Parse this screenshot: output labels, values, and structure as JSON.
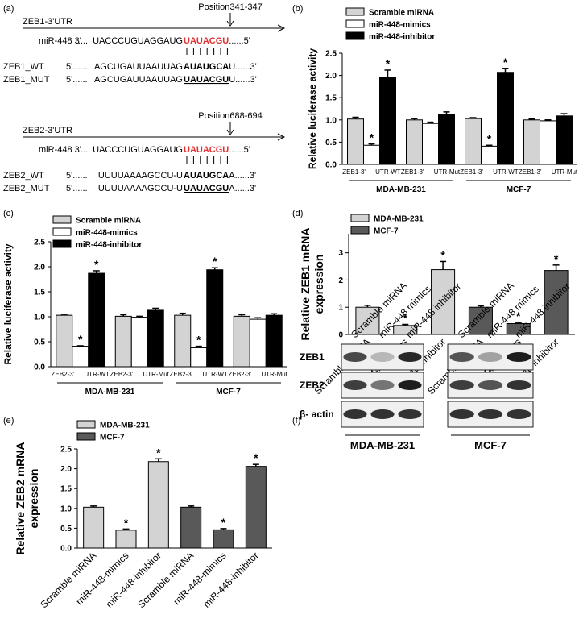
{
  "panel_a": {
    "label": "(a)",
    "blocks": [
      {
        "utr": "ZEB1-3'UTR",
        "position": "Position341-347",
        "mirna": "miR-448 3'",
        "mirna_prefix": "...... UACCCUGUAGGAUG",
        "mirna_seed": "UAUACGU",
        "mirna_end": "......5'",
        "targets": [
          {
            "name": "ZEB1_WT",
            "start": "5'......",
            "prefix": "AGCUGAUUAAUUAG",
            "site": "AUAUGCA",
            "end": "U......3'"
          },
          {
            "name": "ZEB1_MUT",
            "start": "5'......",
            "prefix": "AGCUGAUUAAUUAG",
            "site": "UAUACGU",
            "end": "U......3'"
          }
        ]
      },
      {
        "utr": "ZEB2-3'UTR",
        "position": "Position688-694",
        "mirna": "miR-448 3'",
        "mirna_prefix": "...... UACCCUGUAGGAUG",
        "mirna_seed": "UAUACGU",
        "mirna_end": "......5'",
        "targets": [
          {
            "name": "ZEB2_WT",
            "start": "5'......",
            "prefix": "UUUUAAAAGCCU-U",
            "site": "AUAUGCA",
            "end": "A......3'"
          },
          {
            "name": "ZEB2_MUT",
            "start": "5'......",
            "prefix": "UUUUAAAAGCCU-U",
            "site": "UAUACGU",
            "end": "A......3'"
          }
        ]
      }
    ]
  },
  "chart_data": [
    {
      "type": "bar",
      "panel": "(b)",
      "ylabel": "Relative luciferase activity",
      "categories": [
        "ZEB1-3' UTR-WT",
        "ZEB1-3' UTR-Mut",
        "ZEB1-3' UTR-WT",
        "ZEB1-3' UTR-Mut"
      ],
      "group_labels": [
        "MDA-MB-231",
        "MCF-7"
      ],
      "series": [
        {
          "name": "Scramble miRNA",
          "color": "#d3d3d3",
          "values": [
            1.02,
            1.0,
            1.03,
            1.0
          ],
          "errors": [
            0.04,
            0.03,
            0.02,
            0.02
          ],
          "significance": [
            null,
            null,
            null,
            null
          ]
        },
        {
          "name": "miR-448-mimics",
          "color": "#ffffff",
          "values": [
            0.43,
            0.92,
            0.41,
            0.98
          ],
          "errors": [
            0.03,
            0.03,
            0.02,
            0.02
          ],
          "significance": [
            "*",
            null,
            "*",
            null
          ]
        },
        {
          "name": "miR-448-inhibitor",
          "color": "#000000",
          "values": [
            1.95,
            1.13,
            2.07,
            1.09
          ],
          "errors": [
            0.17,
            0.05,
            0.09,
            0.05
          ],
          "significance": [
            "*",
            null,
            "*",
            null
          ]
        }
      ],
      "ylim": [
        0,
        2.5
      ],
      "yticks": [
        {
          "value": 0,
          "label": "0.0"
        },
        0.5,
        {
          "value": 1,
          "label": "1.0"
        },
        1.5,
        {
          "value": 2,
          "label": "2.0"
        },
        2.5
      ]
    },
    {
      "type": "bar",
      "panel": "(c)",
      "ylabel": "Relative luciferase activity",
      "categories": [
        "ZEB2-3' UTR-WT",
        "ZEB2-3' UTR-Mut",
        "ZEB2-3' UTR-WT",
        "ZEB2-3' UTR-Mut"
      ],
      "group_labels": [
        "MDA-MB-231",
        "MCF-7"
      ],
      "series": [
        {
          "name": "Scramble miRNA",
          "color": "#d3d3d3",
          "values": [
            1.03,
            1.01,
            1.03,
            1.01
          ],
          "errors": [
            0.02,
            0.03,
            0.04,
            0.03
          ],
          "significance": [
            null,
            null,
            null,
            null
          ]
        },
        {
          "name": "miR-448-mimics",
          "color": "#ffffff",
          "values": [
            0.41,
            0.99,
            0.38,
            0.95
          ],
          "errors": [
            0.01,
            0.02,
            0.03,
            0.03
          ],
          "significance": [
            "*",
            null,
            "*",
            null
          ]
        },
        {
          "name": "miR-448-inhibitor",
          "color": "#000000",
          "values": [
            1.87,
            1.13,
            1.94,
            1.03
          ],
          "errors": [
            0.05,
            0.04,
            0.04,
            0.03
          ],
          "significance": [
            "*",
            null,
            "*",
            null
          ]
        }
      ],
      "ylim": [
        0,
        2.5
      ],
      "yticks": [
        {
          "value": 0,
          "label": "0.0"
        },
        0.5,
        {
          "value": 1,
          "label": "1.0"
        },
        1.5,
        {
          "value": 2,
          "label": "2.0"
        },
        2.5
      ]
    },
    {
      "type": "bar",
      "panel": "(d)",
      "ylabel": [
        "Relative ZEB1 mRNA",
        "expression"
      ],
      "categories": [
        "Scramble miRNA",
        "miR-448-mimics",
        "miR-448-inhibitor",
        "Scramble miRNA",
        "miR-448-mimics",
        "miR-448-inhibitor"
      ],
      "series": [
        {
          "name": "MDA-MB-231",
          "color": "#d3d3d3",
          "values": [
            1.0,
            0.33,
            2.38,
            null,
            null,
            null
          ],
          "errors": [
            0.07,
            0.04,
            0.3,
            null,
            null,
            null
          ],
          "significance": [
            null,
            "*",
            "*",
            null,
            null,
            null
          ]
        },
        {
          "name": "MCF-7",
          "color": "#595959",
          "values": [
            null,
            null,
            null,
            1.0,
            0.4,
            2.35
          ],
          "errors": [
            null,
            null,
            null,
            0.05,
            0.04,
            0.2
          ],
          "significance": [
            null,
            null,
            null,
            null,
            "*",
            "*"
          ]
        }
      ],
      "ylim": [
        0,
        3.7
      ],
      "yticks": [
        0,
        1,
        2,
        3
      ]
    },
    {
      "type": "bar",
      "panel": "(e)",
      "ylabel": [
        "Relative ZEB2 mRNA",
        "expression"
      ],
      "categories": [
        "Scramble miRNA",
        "miR-448-mimics",
        "miR-448-inhibitor",
        "Scramble miRNA",
        "miR-448-mimics",
        "miR-448-inhibitor"
      ],
      "series": [
        {
          "name": "MDA-MB-231",
          "color": "#d3d3d3",
          "values": [
            1.03,
            0.45,
            2.18,
            null,
            null,
            null
          ],
          "errors": [
            0.03,
            0.03,
            0.07,
            null,
            null,
            null
          ],
          "significance": [
            null,
            "*",
            "*",
            null,
            null,
            null
          ]
        },
        {
          "name": "MCF-7",
          "color": "#595959",
          "values": [
            null,
            null,
            null,
            1.03,
            0.46,
            2.06
          ],
          "errors": [
            null,
            null,
            null,
            0.03,
            0.03,
            0.05
          ],
          "significance": [
            null,
            null,
            null,
            null,
            "*",
            "*"
          ]
        }
      ],
      "ylim": [
        0,
        2.5
      ],
      "yticks": [
        {
          "value": 0,
          "label": "0.0"
        },
        0.5,
        {
          "value": 1,
          "label": "1.0"
        },
        1.5,
        {
          "value": 2,
          "label": "2.0"
        },
        2.5
      ]
    }
  ],
  "panel_f": {
    "label": "(f)",
    "lanes": [
      "Scramble miRNA",
      "miR-448 mimics",
      "miR-448 inhibitor"
    ],
    "rows": [
      "ZEB1",
      "ZEB2",
      "β- actin"
    ],
    "cell_lines": [
      "MDA-MB-231",
      "MCF-7"
    ]
  }
}
